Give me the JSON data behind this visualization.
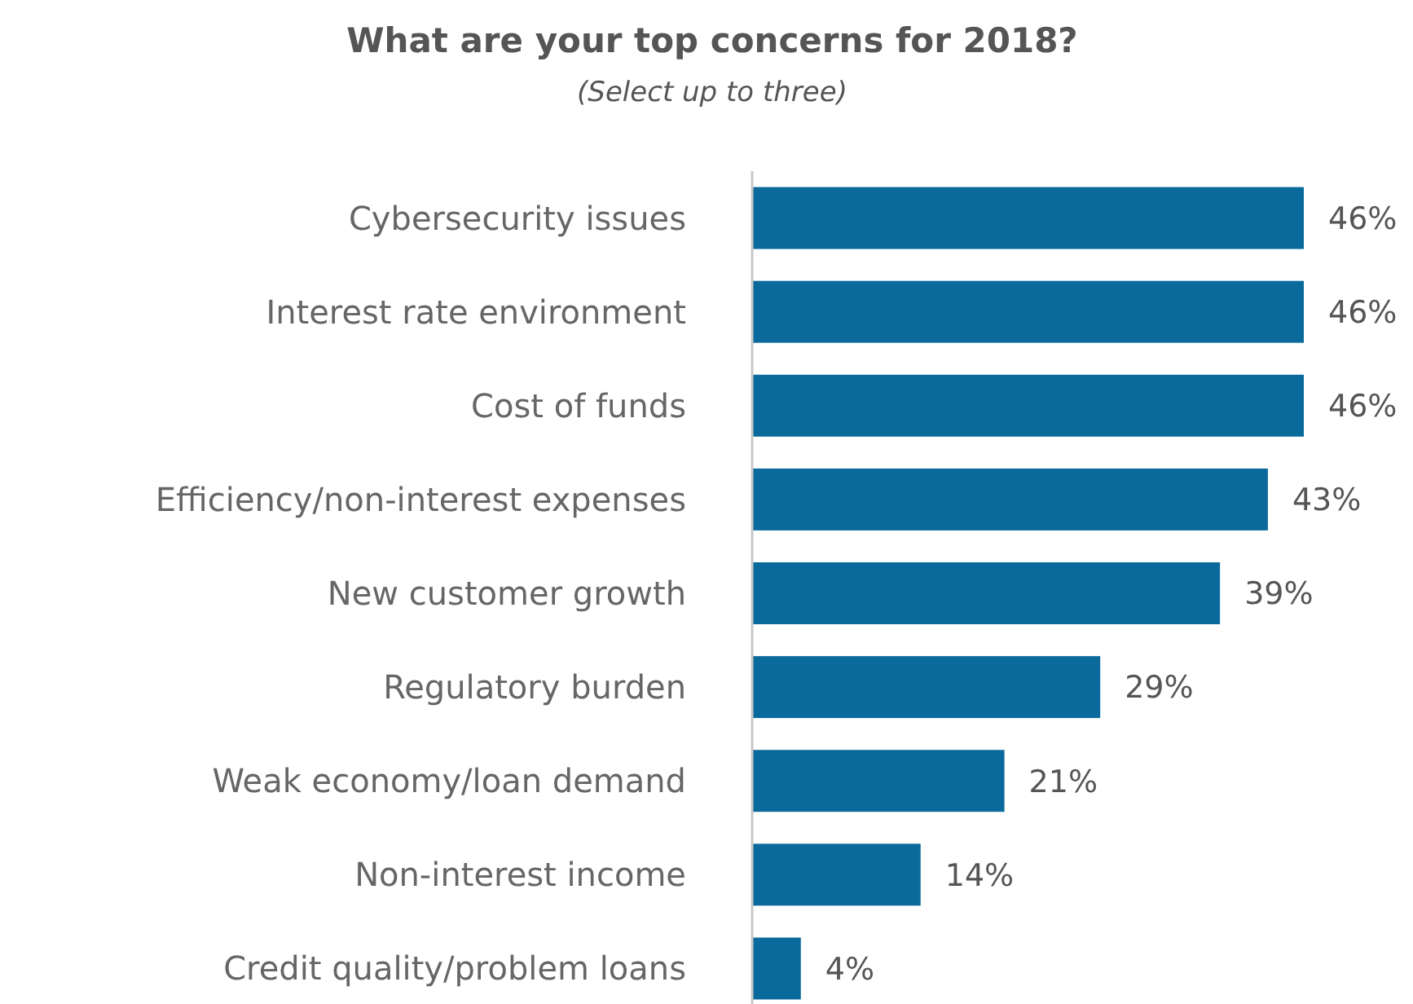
{
  "chart_data": {
    "type": "bar",
    "orientation": "horizontal",
    "title": "What are your top concerns for 2018?",
    "subtitle": "(Select up to three)",
    "categories": [
      "Cybersecurity issues",
      "Interest rate environment",
      "Cost of funds",
      "Efficiency/non-interest expenses",
      "New customer growth",
      "Regulatory burden",
      "Weak economy/loan demand",
      "Non-interest income",
      "Credit quality/problem loans"
    ],
    "values": [
      46,
      46,
      46,
      43,
      39,
      29,
      21,
      14,
      4
    ],
    "value_labels": [
      "46%",
      "46%",
      "46%",
      "43%",
      "39%",
      "29%",
      "21%",
      "14%",
      "4%"
    ],
    "color": "#0b6a9c"
  }
}
